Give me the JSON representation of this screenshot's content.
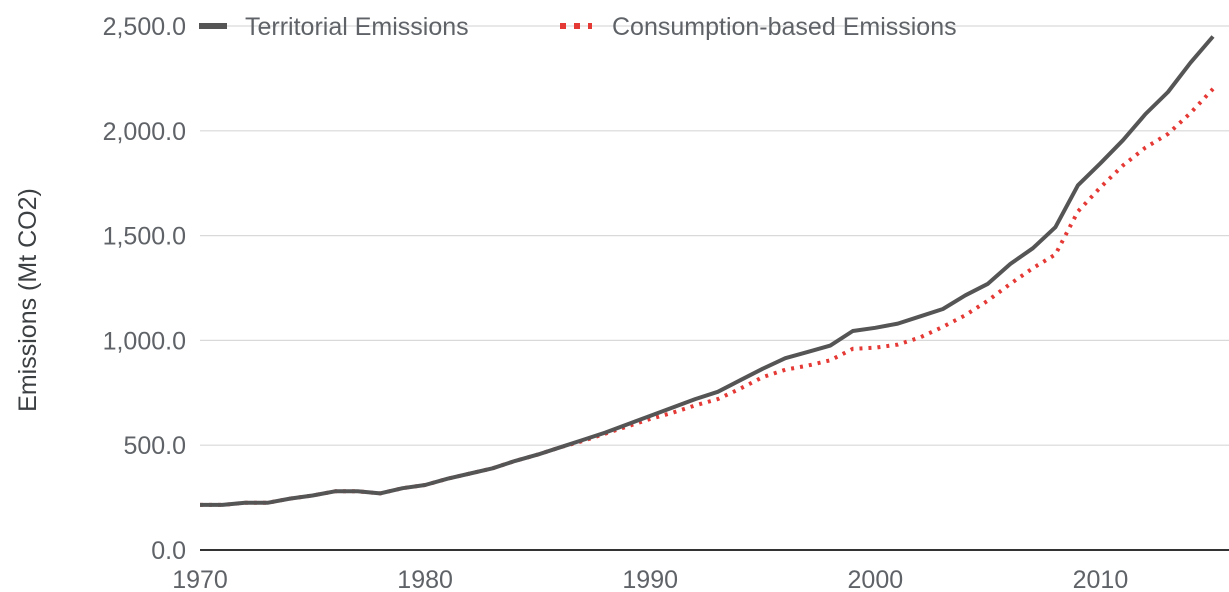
{
  "chart_data": {
    "type": "line",
    "title": "",
    "xlabel": "",
    "ylabel": "Emissions (Mt CO2)",
    "xlim": [
      1970,
      2015
    ],
    "ylim": [
      0,
      2500
    ],
    "x_ticks": [
      "1970",
      "1980",
      "1990",
      "2000",
      "2010"
    ],
    "y_ticks": [
      "0.0",
      "500.0",
      "1,000.0",
      "1,500.0",
      "2,000.0",
      "2,500.0"
    ],
    "grid": "horizontal",
    "legend_position": "top",
    "x": [
      1970,
      1971,
      1972,
      1973,
      1974,
      1975,
      1976,
      1977,
      1978,
      1979,
      1980,
      1981,
      1982,
      1983,
      1984,
      1985,
      1986,
      1987,
      1988,
      1989,
      1990,
      1991,
      1992,
      1993,
      1994,
      1995,
      1996,
      1997,
      1998,
      1999,
      2000,
      2001,
      2002,
      2003,
      2004,
      2005,
      2006,
      2007,
      2008,
      2009,
      2010,
      2011,
      2012,
      2013,
      2014,
      2015
    ],
    "series": [
      {
        "name": "Territorial Emissions",
        "color": "#555555",
        "style": "solid",
        "values": [
          215,
          215,
          225,
          225,
          245,
          260,
          280,
          280,
          270,
          295,
          310,
          340,
          365,
          390,
          425,
          455,
          490,
          525,
          560,
          600,
          640,
          680,
          720,
          755,
          810,
          865,
          915,
          945,
          975,
          1045,
          1060,
          1080,
          1115,
          1150,
          1215,
          1270,
          1365,
          1440,
          1540,
          1740,
          1845,
          1955,
          2080,
          2185,
          2325,
          2450
        ]
      },
      {
        "name": "Consumption-based Emissions",
        "color": "#e53935",
        "style": "dotted",
        "values": [
          215,
          215,
          225,
          225,
          245,
          260,
          280,
          280,
          270,
          295,
          310,
          340,
          365,
          390,
          425,
          455,
          490,
          520,
          555,
          590,
          625,
          655,
          690,
          720,
          770,
          825,
          860,
          880,
          905,
          960,
          965,
          980,
          1015,
          1065,
          1120,
          1190,
          1270,
          1345,
          1410,
          1615,
          1730,
          1835,
          1920,
          1985,
          2085,
          2200
        ]
      }
    ]
  }
}
